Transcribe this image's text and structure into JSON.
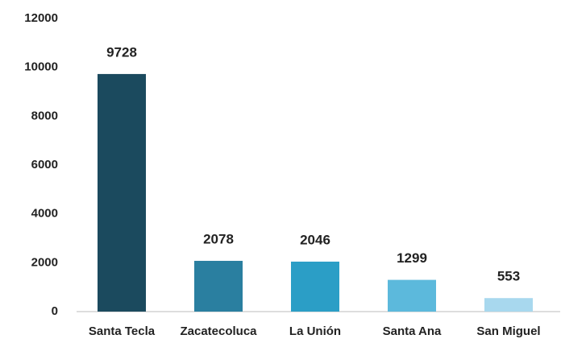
{
  "chart_data": {
    "type": "bar",
    "categories": [
      "Santa Tecla",
      "Zacatecoluca",
      "La Unión",
      "Santa Ana",
      "San Miguel"
    ],
    "values": [
      9728,
      2078,
      2046,
      1299,
      553
    ],
    "colors": [
      "#1b4a5e",
      "#2a7fa0",
      "#2b9ec6",
      "#5cb9dc",
      "#a8d8ee"
    ],
    "ylim": [
      0,
      12000
    ],
    "yticks": [
      0,
      2000,
      4000,
      6000,
      8000,
      10000,
      12000
    ],
    "grid": false
  }
}
